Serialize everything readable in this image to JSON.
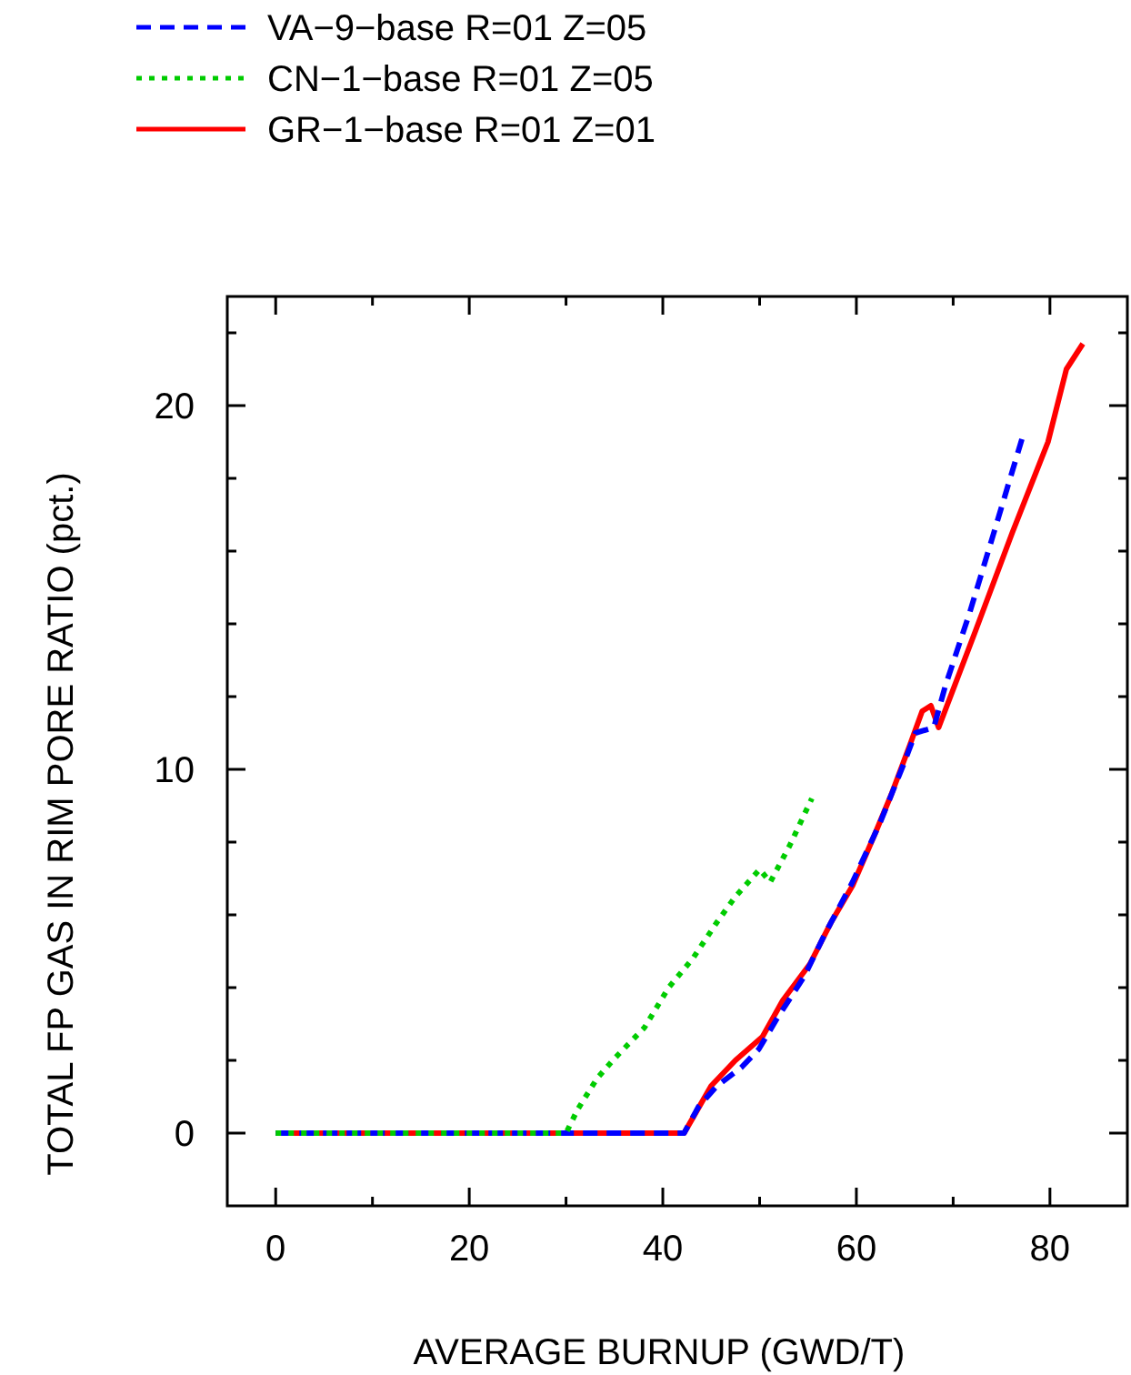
{
  "chart_data": {
    "type": "line",
    "xlabel": "AVERAGE BURNUP (GWD/T)",
    "ylabel": "TOTAL FP GAS IN RIM PORE RATIO (pct.)",
    "legend": "top left",
    "grid": false,
    "xlim": [
      -5,
      88
    ],
    "ylim": [
      -2,
      23
    ],
    "xticks": [
      0,
      {
        "value": 10,
        "label": null
      },
      20,
      {
        "value": 30,
        "label": null
      },
      40,
      {
        "value": 50,
        "label": null
      },
      60,
      {
        "value": 70,
        "label": null
      },
      80
    ],
    "yticks": [
      0,
      {
        "value": 2,
        "label": null
      },
      {
        "value": 4,
        "label": null
      },
      {
        "value": 6,
        "label": null
      },
      {
        "value": 8,
        "label": null
      },
      10,
      {
        "value": 12,
        "label": null
      },
      {
        "value": 14,
        "label": null
      },
      {
        "value": 16,
        "label": null
      },
      {
        "value": 18,
        "label": null
      },
      20,
      {
        "value": 22,
        "label": null
      }
    ],
    "series": [
      {
        "name": "VA−9−base R=01 Z=05",
        "color": "#0000ff",
        "line_style": "dashed",
        "x": [
          0,
          42.2,
          43.7,
          45.6,
          48.1,
          49.9,
          51.8,
          54.6,
          56.8,
          59.6,
          62.4,
          64.9,
          66.1,
          68.0,
          69.2,
          71.7,
          74.2,
          77.3
        ],
        "values": [
          0,
          0,
          0.73,
          1.3,
          1.8,
          2.3,
          3.15,
          4.3,
          5.5,
          6.9,
          8.5,
          10.15,
          11.0,
          11.15,
          12.3,
          14.3,
          16.5,
          19.25
        ]
      },
      {
        "name": "CN−1−base R=01 Z=05",
        "color": "#00cc00",
        "line_style": "dotted",
        "x": [
          0,
          30.0,
          31.2,
          33.2,
          35.0,
          38.1,
          40.6,
          43.1,
          45.6,
          47.5,
          50.0,
          51.1,
          53.1,
          55.4
        ],
        "values": [
          0,
          0,
          0.65,
          1.5,
          2.05,
          2.9,
          4.0,
          4.8,
          5.8,
          6.5,
          7.25,
          6.9,
          7.9,
          9.2
        ]
      },
      {
        "name": "GR−1−base R=01 Z=01",
        "color": "#ff0000",
        "line_style": "solid",
        "x": [
          0,
          42.2,
          45.0,
          47.5,
          50.3,
          52.4,
          55.2,
          57.4,
          59.6,
          61.8,
          63.6,
          65.5,
          66.8,
          67.7,
          68.5,
          72.3,
          76.1,
          79.8,
          81.7,
          83.4
        ],
        "values": [
          0,
          0,
          1.3,
          2.0,
          2.65,
          3.65,
          4.65,
          5.8,
          6.8,
          8.15,
          9.3,
          10.65,
          11.6,
          11.75,
          11.15,
          13.8,
          16.5,
          19.0,
          21.0,
          21.7
        ]
      }
    ]
  }
}
